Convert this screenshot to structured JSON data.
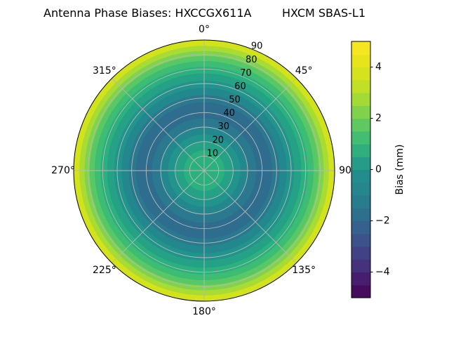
{
  "title": {
    "left": "Antenna Phase Biases: HXCCGX611A",
    "right": "HXCM SBAS-L1"
  },
  "chart_data": {
    "type": "polar_contour",
    "title": "Antenna Phase Biases: HXCCGX611A      HXCM SBAS-L1",
    "theta_zero_location": "N",
    "theta_direction": "clockwise",
    "r_max": 90,
    "r_ticks": [
      10,
      20,
      30,
      40,
      50,
      60,
      70,
      80,
      90
    ],
    "r_label_angle_deg": 22.5,
    "grid_color": "#b8b8b8",
    "spine_color": "#000000",
    "theta_labels": [
      {
        "angle": 0,
        "label": "0°"
      },
      {
        "angle": 45,
        "label": "45°"
      },
      {
        "angle": 90,
        "label": "90"
      },
      {
        "angle": 135,
        "label": "135°"
      },
      {
        "angle": 180,
        "label": "180°"
      },
      {
        "angle": 225,
        "label": "225°"
      },
      {
        "angle": 270,
        "label": "270°"
      },
      {
        "angle": 315,
        "label": "315°"
      }
    ],
    "rings": [
      {
        "outer_deg": 90,
        "bias_mm": 4.0,
        "color": "#d2e21b"
      },
      {
        "outer_deg": 86,
        "bias_mm": 3.5,
        "color": "#a8db33"
      },
      {
        "outer_deg": 82.5,
        "bias_mm": 3.0,
        "color": "#7fd34e"
      },
      {
        "outer_deg": 79,
        "bias_mm": 2.5,
        "color": "#58c765"
      },
      {
        "outer_deg": 75.5,
        "bias_mm": 2.0,
        "color": "#3dbc74"
      },
      {
        "outer_deg": 71.5,
        "bias_mm": 1.5,
        "color": "#2bb17d"
      },
      {
        "outer_deg": 67,
        "bias_mm": 1.0,
        "color": "#25a186"
      },
      {
        "outer_deg": 62,
        "bias_mm": 0.5,
        "color": "#21948c"
      },
      {
        "outer_deg": 57,
        "bias_mm": 0.0,
        "color": "#23878e"
      },
      {
        "outer_deg": 52,
        "bias_mm": -0.5,
        "color": "#2a798e"
      },
      {
        "outer_deg": 47,
        "bias_mm": -1.0,
        "color": "#2e6d8e"
      },
      {
        "outer_deg": 36,
        "bias_mm": -0.5,
        "color": "#2a798e"
      },
      {
        "outer_deg": 30,
        "bias_mm": 0.0,
        "color": "#23878e"
      },
      {
        "outer_deg": 25,
        "bias_mm": 0.5,
        "color": "#21948c"
      },
      {
        "outer_deg": 20,
        "bias_mm": 1.0,
        "color": "#25a186"
      },
      {
        "outer_deg": 14,
        "bias_mm": 1.5,
        "color": "#2bb17d"
      }
    ],
    "colorbar": {
      "label": "Bias (mm)",
      "min": -5,
      "max": 5,
      "ticks": [
        {
          "value": -4,
          "label": "−4"
        },
        {
          "value": -2,
          "label": "−2"
        },
        {
          "value": 0,
          "label": "0"
        },
        {
          "value": 2,
          "label": "2"
        },
        {
          "value": 4,
          "label": "4"
        }
      ],
      "segments_bottom_to_top": [
        "#450b5d",
        "#471e6f",
        "#46317c",
        "#414285",
        "#3b528a",
        "#34618d",
        "#2e6f8e",
        "#297c8e",
        "#25868d",
        "#228d8c",
        "#269b87",
        "#30ae7e",
        "#43bd71",
        "#60c860",
        "#80d24d",
        "#a3da36",
        "#c0df26",
        "#d5e21d",
        "#e7e41b",
        "#f6e622"
      ]
    }
  }
}
